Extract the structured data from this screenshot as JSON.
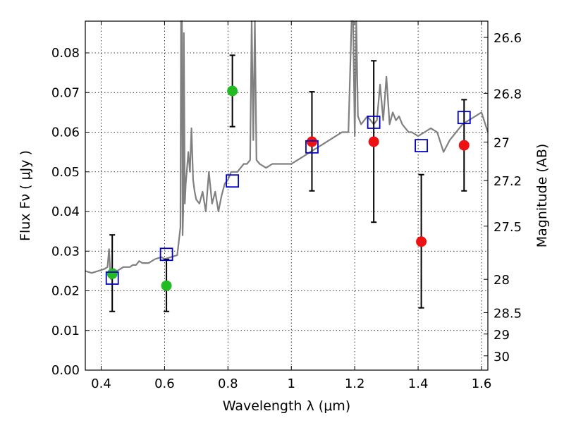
{
  "chart_data": {
    "type": "scatter",
    "xlabel": "Wavelength  λ (μm)",
    "ylabel": "Flux  Fν  ( μJy )",
    "ylabel_right": "Magnitude (AB)",
    "xlim": [
      0.35,
      1.62
    ],
    "ylim": [
      0.0,
      0.088
    ],
    "grid": true,
    "x_ticks": [
      0.4,
      0.6,
      0.8,
      1.0,
      1.2,
      1.4,
      1.6
    ],
    "x_tick_labels": [
      "0.4",
      "0.6",
      "0.8",
      "1",
      "1.2",
      "1.4",
      "1.6"
    ],
    "y_ticks": [
      0.0,
      0.01,
      0.02,
      0.03,
      0.04,
      0.05,
      0.06,
      0.07,
      0.08
    ],
    "y_tick_labels": [
      "0.00",
      "0.01",
      "0.02",
      "0.03",
      "0.04",
      "0.05",
      "0.06",
      "0.07",
      "0.08"
    ],
    "right_ticks": [
      {
        "label": "26.6",
        "flux": 0.0839
      },
      {
        "label": "26.8",
        "flux": 0.0698
      },
      {
        "label": "27",
        "flux": 0.0575
      },
      {
        "label": "27.2",
        "flux": 0.0478
      },
      {
        "label": "27.5",
        "flux": 0.0363
      },
      {
        "label": "28",
        "flux": 0.0229
      },
      {
        "label": "28.5",
        "flux": 0.0145
      },
      {
        "label": "29",
        "flux": 0.0091
      },
      {
        "label": "30",
        "flux": 0.0036
      }
    ],
    "series": [
      {
        "marker": "circle",
        "color": "#22bb22",
        "points": [
          {
            "x": 0.435,
            "y": 0.0243,
            "err_lo": 0.0148,
            "err_hi": 0.0341
          },
          {
            "x": 0.606,
            "y": 0.0213,
            "err_lo": 0.0148,
            "err_hi": 0.0279
          },
          {
            "x": 0.814,
            "y": 0.0704,
            "err_lo": 0.0614,
            "err_hi": 0.0794
          }
        ]
      },
      {
        "marker": "circle",
        "color": "#ee1111",
        "points": [
          {
            "x": 1.065,
            "y": 0.0576,
            "err_lo": 0.0452,
            "err_hi": 0.0702
          },
          {
            "x": 1.26,
            "y": 0.0576,
            "err_lo": 0.0373,
            "err_hi": 0.078
          },
          {
            "x": 1.41,
            "y": 0.0324,
            "err_lo": 0.0157,
            "err_hi": 0.0493
          },
          {
            "x": 1.545,
            "y": 0.0567,
            "err_lo": 0.0452,
            "err_hi": 0.0682
          }
        ]
      },
      {
        "marker": "open-square",
        "color": "#0000cc",
        "points": [
          {
            "x": 0.435,
            "y": 0.0232
          },
          {
            "x": 0.606,
            "y": 0.0292
          },
          {
            "x": 0.814,
            "y": 0.0477
          },
          {
            "x": 1.065,
            "y": 0.0563
          },
          {
            "x": 1.26,
            "y": 0.0625
          },
          {
            "x": 1.41,
            "y": 0.0566
          },
          {
            "x": 1.545,
            "y": 0.0637
          }
        ]
      },
      {
        "type": "line",
        "color": "#808080",
        "x": [
          0.35,
          0.37,
          0.39,
          0.41,
          0.42,
          0.425,
          0.43,
          0.44,
          0.45,
          0.46,
          0.47,
          0.48,
          0.49,
          0.5,
          0.51,
          0.52,
          0.53,
          0.55,
          0.57,
          0.59,
          0.6,
          0.62,
          0.64,
          0.65,
          0.652,
          0.655,
          0.657,
          0.659,
          0.661,
          0.664,
          0.667,
          0.67,
          0.675,
          0.68,
          0.685,
          0.69,
          0.695,
          0.7,
          0.71,
          0.72,
          0.73,
          0.74,
          0.75,
          0.76,
          0.77,
          0.78,
          0.79,
          0.8,
          0.81,
          0.82,
          0.83,
          0.84,
          0.85,
          0.86,
          0.87,
          0.875,
          0.88,
          0.885,
          0.89,
          0.9,
          0.92,
          0.94,
          0.96,
          0.98,
          1.0,
          1.02,
          1.04,
          1.06,
          1.08,
          1.1,
          1.12,
          1.14,
          1.16,
          1.18,
          1.19,
          1.195,
          1.2,
          1.205,
          1.21,
          1.22,
          1.23,
          1.24,
          1.25,
          1.26,
          1.27,
          1.28,
          1.29,
          1.3,
          1.31,
          1.32,
          1.33,
          1.34,
          1.35,
          1.36,
          1.37,
          1.38,
          1.4,
          1.42,
          1.44,
          1.46,
          1.48,
          1.5,
          1.52,
          1.54,
          1.56,
          1.58,
          1.6,
          1.62
        ],
        "y": [
          0.025,
          0.0245,
          0.025,
          0.0255,
          0.026,
          0.0305,
          0.023,
          0.0255,
          0.025,
          0.0255,
          0.026,
          0.026,
          0.026,
          0.0265,
          0.0265,
          0.0275,
          0.027,
          0.027,
          0.028,
          0.0285,
          0.028,
          0.0285,
          0.029,
          0.036,
          0.088,
          0.088,
          0.034,
          0.04,
          0.085,
          0.042,
          0.047,
          0.05,
          0.055,
          0.05,
          0.061,
          0.048,
          0.045,
          0.043,
          0.042,
          0.045,
          0.04,
          0.05,
          0.042,
          0.045,
          0.04,
          0.044,
          0.047,
          0.048,
          0.05,
          0.05,
          0.05,
          0.051,
          0.052,
          0.052,
          0.053,
          0.088,
          0.058,
          0.088,
          0.053,
          0.052,
          0.051,
          0.052,
          0.052,
          0.052,
          0.052,
          0.053,
          0.054,
          0.055,
          0.056,
          0.057,
          0.058,
          0.059,
          0.06,
          0.06,
          0.088,
          0.088,
          0.059,
          0.088,
          0.064,
          0.062,
          0.063,
          0.064,
          0.063,
          0.062,
          0.063,
          0.072,
          0.063,
          0.074,
          0.062,
          0.065,
          0.063,
          0.064,
          0.062,
          0.061,
          0.06,
          0.06,
          0.059,
          0.06,
          0.061,
          0.06,
          0.055,
          0.058,
          0.06,
          0.062,
          0.063,
          0.064,
          0.065,
          0.06
        ]
      }
    ]
  }
}
